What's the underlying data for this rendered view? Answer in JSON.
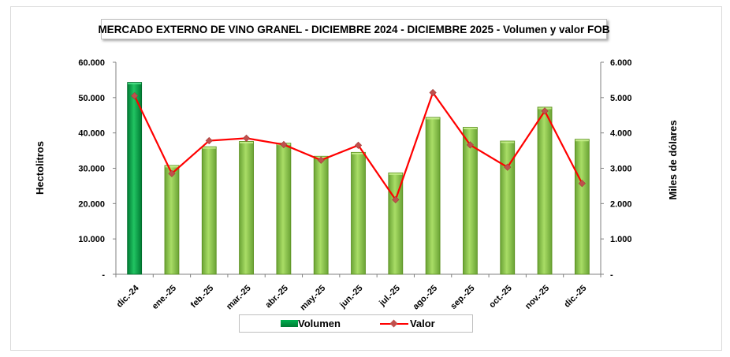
{
  "chart_data": {
    "type": "bar",
    "title": "MERCADO EXTERNO DE VINO GRANEL - DICIEMBRE 2024 - DICIEMBRE 2025 - Volumen y valor FOB",
    "categories": [
      "dic.-24",
      "ene.-25",
      "feb.-25",
      "mar.-25",
      "abr.-25",
      "may.-25",
      "jun.-25",
      "jul.-25",
      "ago.-25",
      "sep.-25",
      "oct.-25",
      "nov.-25",
      "dic.-25"
    ],
    "series": [
      {
        "name": "Volumen",
        "type": "bar",
        "axis": "left",
        "values": [
          54300,
          30800,
          36100,
          37600,
          37100,
          33400,
          34500,
          28700,
          44400,
          41600,
          37700,
          47300,
          38200
        ]
      },
      {
        "name": "Valor",
        "type": "line",
        "axis": "right",
        "values": [
          5050,
          2850,
          3780,
          3850,
          3670,
          3230,
          3650,
          2110,
          5140,
          3660,
          3030,
          4620,
          2570
        ]
      }
    ],
    "ylabel": "Hectolitros",
    "ylabel_right": "Miles de dólares",
    "ylim": [
      0,
      60000
    ],
    "ylim_right": [
      0,
      6000
    ],
    "yticks": [
      "-",
      "10.000",
      "20.000",
      "30.000",
      "40.000",
      "50.000",
      "60.000"
    ],
    "yticks_right": [
      "-",
      "1.000",
      "2.000",
      "3.000",
      "4.000",
      "5.000",
      "6.000"
    ],
    "grid": false,
    "legend_position": "bottom",
    "highlight_first_bar": true,
    "colors": {
      "bar": "#92d050",
      "bar_dark": "#5a8f1e",
      "bar_highlight": "#00b050",
      "bar_highlight_dark": "#006b2b",
      "line": "#ff0000",
      "marker": "#c0504d"
    }
  }
}
